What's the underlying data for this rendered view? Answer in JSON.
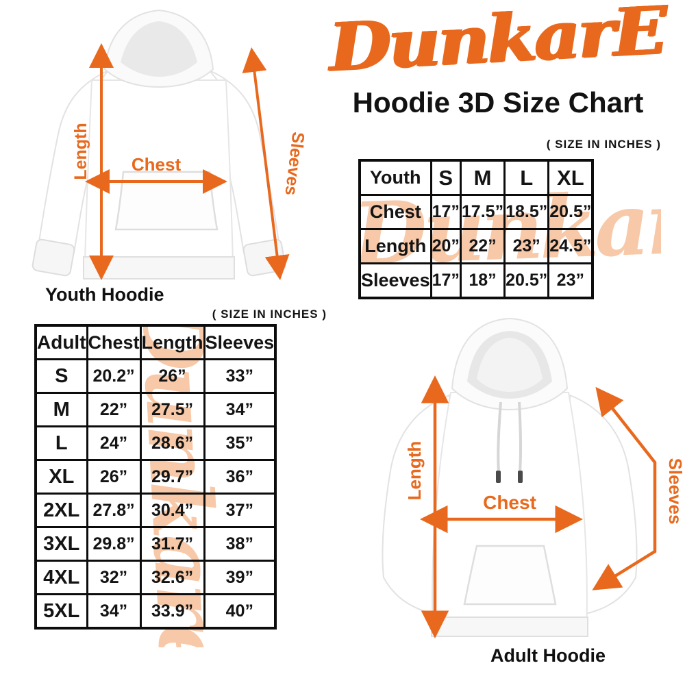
{
  "brand": {
    "logo_text": "DunkarE",
    "logo_color": "#e8691d",
    "watermark_text": "Dunkare",
    "watermark_color": "#f7c9a8"
  },
  "title": "Hoodie 3D Size Chart",
  "accent_color": "#e8691d",
  "youth_figure": {
    "caption": "Youth Hoodie",
    "labels": {
      "length": "Length",
      "chest": "Chest",
      "sleeves": "Sleeves"
    }
  },
  "adult_figure": {
    "caption": "Adult Hoodie",
    "labels": {
      "length": "Length",
      "chest": "Chest",
      "sleeves": "Sleeves"
    }
  },
  "youth_table": {
    "size_note": "( SIZE IN INCHES )",
    "header": [
      "Youth",
      "S",
      "M",
      "L",
      "XL"
    ],
    "rows": [
      [
        "Chest",
        "17”",
        "17.5”",
        "18.5”",
        "20.5”"
      ],
      [
        "Length",
        "20”",
        "22”",
        "23”",
        "24.5”"
      ],
      [
        "Sleeves",
        "17”",
        "18”",
        "20.5”",
        "23”"
      ]
    ]
  },
  "adult_table": {
    "size_note": "( SIZE IN INCHES )",
    "header": [
      "Adult",
      "Chest",
      "Length",
      "Sleeves"
    ],
    "rows": [
      [
        "S",
        "20.2”",
        "26”",
        "33”"
      ],
      [
        "M",
        "22”",
        "27.5”",
        "34”"
      ],
      [
        "L",
        "24”",
        "28.6”",
        "35”"
      ],
      [
        "XL",
        "26”",
        "29.7”",
        "36”"
      ],
      [
        "2XL",
        "27.8”",
        "30.4”",
        "37”"
      ],
      [
        "3XL",
        "29.8”",
        "31.7”",
        "38”"
      ],
      [
        "4XL",
        "32”",
        "32.6”",
        "39”"
      ],
      [
        "5XL",
        "34”",
        "33.9”",
        "40”"
      ]
    ]
  }
}
